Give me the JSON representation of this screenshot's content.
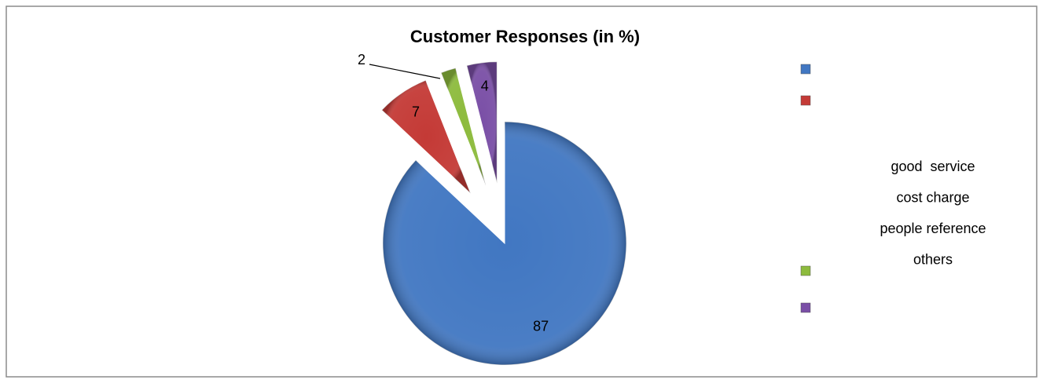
{
  "chart_data": {
    "type": "pie",
    "title": "Customer Responses (in %)",
    "categories": [
      "good  service",
      "cost charge",
      "people reference",
      "others"
    ],
    "values": [
      87,
      7,
      2,
      4
    ],
    "colors": [
      "#4177c2",
      "#c43a36",
      "#8dbb3d",
      "#7a4fa6"
    ],
    "exploded": true,
    "legend": "right"
  }
}
